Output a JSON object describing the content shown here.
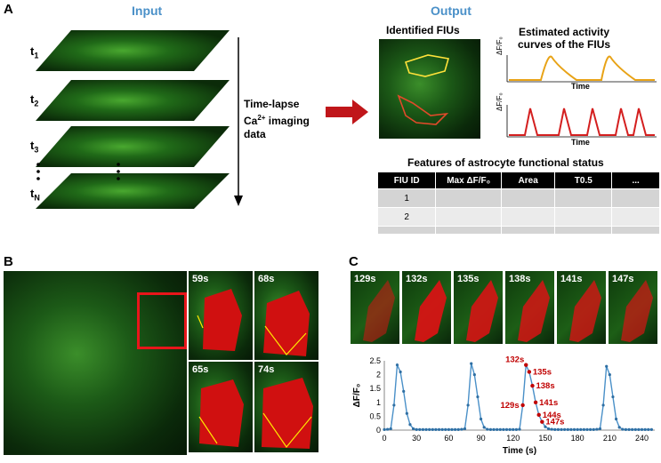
{
  "panelA": {
    "letter": "A",
    "input_header": "Input",
    "output_header": "Output",
    "time_labels": [
      "t",
      "t",
      "t",
      "t"
    ],
    "time_subs": [
      "1",
      "2",
      "3",
      "N"
    ],
    "arrow_text_line1": "Time-lapse",
    "arrow_text_line2_pre": "Ca",
    "arrow_text_line2_sup": "2+",
    "arrow_text_line2_post": " imaging",
    "arrow_text_line3": "data",
    "identified_title": "Identified FIUs",
    "curves_title_line1": "Estimated activity",
    "curves_title_line2": "curves of the FIUs",
    "curve_ylabel": "ΔF/F₀",
    "curve_xlabel": "Time",
    "table_title": "Features of astrocyte functional status",
    "table_headers": [
      "FIU ID",
      "Max ΔF/F₀",
      "Area",
      "T0.5",
      "..."
    ],
    "table_rows": [
      "1",
      "2",
      ""
    ],
    "colors": {
      "yellow_curve": "#e8a317",
      "red_curve": "#d41f1f",
      "header_blue": "#4a90c8"
    }
  },
  "panelB": {
    "letter": "B",
    "tiles": [
      "59s",
      "68s",
      "65s",
      "74s"
    ]
  },
  "panelC": {
    "letter": "C",
    "tiles": [
      "129s",
      "132s",
      "135s",
      "138s",
      "141s",
      "147s"
    ],
    "chart_data": {
      "type": "line",
      "xlabel": "Time (s)",
      "ylabel": "ΔF/F₀",
      "xlim": [
        0,
        252
      ],
      "ylim": [
        0,
        2.5
      ],
      "xticks": [
        0,
        30,
        60,
        90,
        120,
        150,
        180,
        210,
        240
      ],
      "yticks": [
        0,
        0.5,
        1,
        1.5,
        2,
        2.5
      ],
      "x": [
        0,
        3,
        6,
        9,
        12,
        15,
        18,
        21,
        24,
        27,
        30,
        33,
        36,
        39,
        42,
        45,
        48,
        51,
        54,
        57,
        60,
        63,
        66,
        69,
        72,
        75,
        78,
        81,
        84,
        87,
        90,
        93,
        96,
        99,
        102,
        105,
        108,
        111,
        114,
        117,
        120,
        123,
        126,
        129,
        132,
        135,
        138,
        141,
        144,
        147,
        150,
        153,
        156,
        159,
        162,
        165,
        168,
        171,
        174,
        177,
        180,
        183,
        186,
        189,
        192,
        195,
        198,
        201,
        204,
        207,
        210,
        213,
        216,
        219,
        222,
        225,
        228,
        231,
        234,
        237,
        240,
        243,
        246,
        249
      ],
      "y": [
        0.02,
        0.03,
        0.05,
        0.9,
        2.35,
        2.1,
        1.4,
        0.6,
        0.2,
        0.05,
        0.02,
        0.02,
        0.02,
        0.02,
        0.02,
        0.02,
        0.02,
        0.02,
        0.02,
        0.02,
        0.02,
        0.02,
        0.02,
        0.02,
        0.03,
        0.05,
        0.9,
        2.4,
        2.0,
        1.2,
        0.4,
        0.1,
        0.03,
        0.02,
        0.02,
        0.02,
        0.02,
        0.02,
        0.02,
        0.02,
        0.02,
        0.02,
        0.03,
        0.9,
        2.35,
        2.1,
        1.6,
        1.0,
        0.55,
        0.3,
        0.12,
        0.05,
        0.03,
        0.02,
        0.02,
        0.02,
        0.02,
        0.02,
        0.02,
        0.02,
        0.02,
        0.02,
        0.02,
        0.02,
        0.02,
        0.02,
        0.03,
        0.05,
        0.9,
        2.3,
        2.0,
        1.2,
        0.4,
        0.1,
        0.03,
        0.02,
        0.02,
        0.02,
        0.02,
        0.02,
        0.02,
        0.02,
        0.02,
        0.02
      ],
      "annotations": [
        {
          "label": "132s",
          "x": 132,
          "y": 2.35
        },
        {
          "label": "135s",
          "x": 135,
          "y": 2.1
        },
        {
          "label": "138s",
          "x": 138,
          "y": 1.6
        },
        {
          "label": "141s",
          "x": 141,
          "y": 1.0
        },
        {
          "label": "144s",
          "x": 144,
          "y": 0.55
        },
        {
          "label": "147s",
          "x": 147,
          "y": 0.3
        },
        {
          "label": "129s",
          "x": 129,
          "y": 0.9
        }
      ],
      "line_color": "#4a90c8",
      "annotation_color": "#c00000"
    }
  }
}
